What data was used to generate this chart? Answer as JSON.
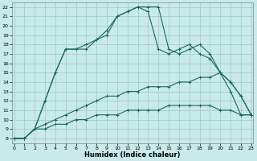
{
  "xlabel": "Humidex (Indice chaleur)",
  "xlim": [
    0,
    23
  ],
  "ylim": [
    8,
    22
  ],
  "yticks": [
    8,
    9,
    10,
    11,
    12,
    13,
    14,
    15,
    16,
    17,
    18,
    19,
    20,
    21,
    22
  ],
  "xticks": [
    0,
    1,
    2,
    3,
    4,
    5,
    6,
    7,
    8,
    9,
    10,
    11,
    12,
    13,
    14,
    15,
    16,
    17,
    18,
    19,
    20,
    21,
    22,
    23
  ],
  "bg_color": "#c8eae8",
  "grid_color": "#a0c8c4",
  "line_color": "#1a6b5a",
  "lines": [
    {
      "x": [
        0,
        1,
        2,
        3,
        4,
        5,
        6,
        7,
        8,
        9,
        10,
        11,
        12,
        13,
        14,
        15,
        16,
        17,
        18,
        19,
        20,
        21,
        22,
        23
      ],
      "y": [
        8,
        8,
        9,
        9,
        9.5,
        9.5,
        10,
        10,
        10.5,
        10.5,
        10.5,
        11,
        11,
        11,
        11,
        11.5,
        11.5,
        11.5,
        11.5,
        11.5,
        11,
        11,
        10.5,
        10.5
      ]
    },
    {
      "x": [
        0,
        1,
        2,
        3,
        4,
        5,
        6,
        7,
        8,
        9,
        10,
        11,
        12,
        13,
        14,
        15,
        16,
        17,
        18,
        19,
        20,
        21,
        22,
        23
      ],
      "y": [
        8,
        8,
        9,
        9.5,
        10,
        10.5,
        11,
        11.5,
        12,
        12.5,
        12.5,
        13,
        13,
        13.5,
        13.5,
        13.5,
        14,
        14,
        14.5,
        14.5,
        15,
        13,
        10.5,
        10.5
      ]
    },
    {
      "x": [
        0,
        1,
        2,
        3,
        4,
        5,
        6,
        7,
        8,
        9,
        10,
        11,
        12,
        13,
        14,
        15,
        16,
        17,
        18,
        19,
        20,
        21,
        22,
        23
      ],
      "y": [
        8,
        8,
        9,
        12,
        15,
        17.5,
        17.5,
        18,
        18.5,
        19.5,
        21,
        21.5,
        22,
        22,
        22,
        17.5,
        17,
        17.5,
        18,
        17,
        15,
        14,
        12.5,
        10.5
      ]
    },
    {
      "x": [
        0,
        1,
        2,
        3,
        4,
        5,
        6,
        7,
        8,
        9,
        10,
        11,
        12,
        13,
        14,
        15,
        16,
        17,
        18,
        19,
        20,
        21,
        22,
        23
      ],
      "y": [
        8,
        8,
        9,
        12,
        15,
        17.5,
        17.5,
        17.5,
        18.5,
        19,
        21,
        21.5,
        22,
        21.5,
        17.5,
        17,
        17.5,
        18,
        17,
        16.5,
        15,
        14,
        12.5,
        10.5
      ]
    }
  ]
}
